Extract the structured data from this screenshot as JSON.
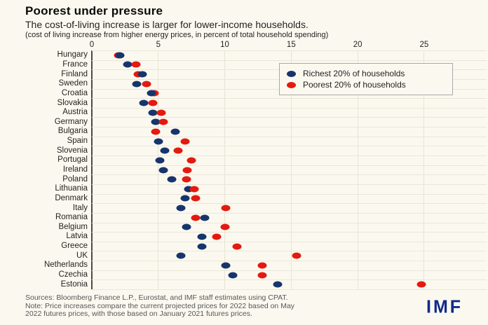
{
  "title": "Poorest under pressure",
  "subtitle": "The cost-of-living increase is larger for lower-income households.",
  "caption": "(cost of living increase from higher energy prices, in percent of total household spending)",
  "legend": {
    "richest_label": "Richest 20% of households",
    "poorest_label": "Poorest 20% of households"
  },
  "chart_data": {
    "type": "scatter",
    "variant": "horizontal-dot-plot",
    "title": "Poorest under pressure",
    "xlabel": "cost of living increase, percent of total household spending",
    "xticks": [
      0,
      5,
      10,
      15,
      20,
      25
    ],
    "xlim": [
      0,
      29.7
    ],
    "grid": "on",
    "legend_position": "top-right-inside",
    "categories": [
      "Hungary",
      "France",
      "Finland",
      "Sweden",
      "Croatia",
      "Slovakia",
      "Austria",
      "Germany",
      "Bulgaria",
      "Spain",
      "Slovenia",
      "Portugal",
      "Ireland",
      "Poland",
      "Lithuania",
      "Denmark",
      "Italy",
      "Romania",
      "Belgium",
      "Latvia",
      "Greece",
      "UK",
      "Netherlands",
      "Czechia",
      "Estonia"
    ],
    "series": [
      {
        "name": "Richest 20% of households",
        "color": "#17356d",
        "values": [
          2.1,
          2.7,
          3.8,
          3.4,
          4.5,
          3.9,
          4.6,
          4.8,
          6.3,
          5.0,
          5.5,
          5.1,
          5.4,
          6.0,
          7.3,
          7.0,
          6.7,
          8.5,
          7.1,
          8.3,
          8.3,
          6.7,
          10.1,
          10.6,
          14.0
        ]
      },
      {
        "name": "Poorest 20% of households",
        "color": "#e41a10",
        "values": [
          2.0,
          3.3,
          3.5,
          4.1,
          4.7,
          4.6,
          5.2,
          5.4,
          4.8,
          7.0,
          6.5,
          7.5,
          7.2,
          7.1,
          7.7,
          7.8,
          10.1,
          7.8,
          10.0,
          9.4,
          10.9,
          15.4,
          12.8,
          12.8,
          24.8
        ]
      }
    ],
    "richest_drawn_on_top": [
      "Hungary",
      "Finland",
      "Croatia"
    ]
  },
  "footer": {
    "line1": "Sources: Bloomberg Finance L.P., Eurostat, and IMF staff estimates using CPAT.",
    "line2": "Note: Price increases compare the current projected prices for 2022 based on May",
    "line3": "2022 futures prices, with those based on January 2021 futures prices."
  },
  "logo": "IMF",
  "colors": {
    "background": "#fbf9ef",
    "richest": "#17356d",
    "poorest": "#e41a10",
    "gridline": "#e7e3d4",
    "axis": "#4a4a48",
    "footer_text": "#55565a",
    "logo_blue": "#10298c"
  }
}
